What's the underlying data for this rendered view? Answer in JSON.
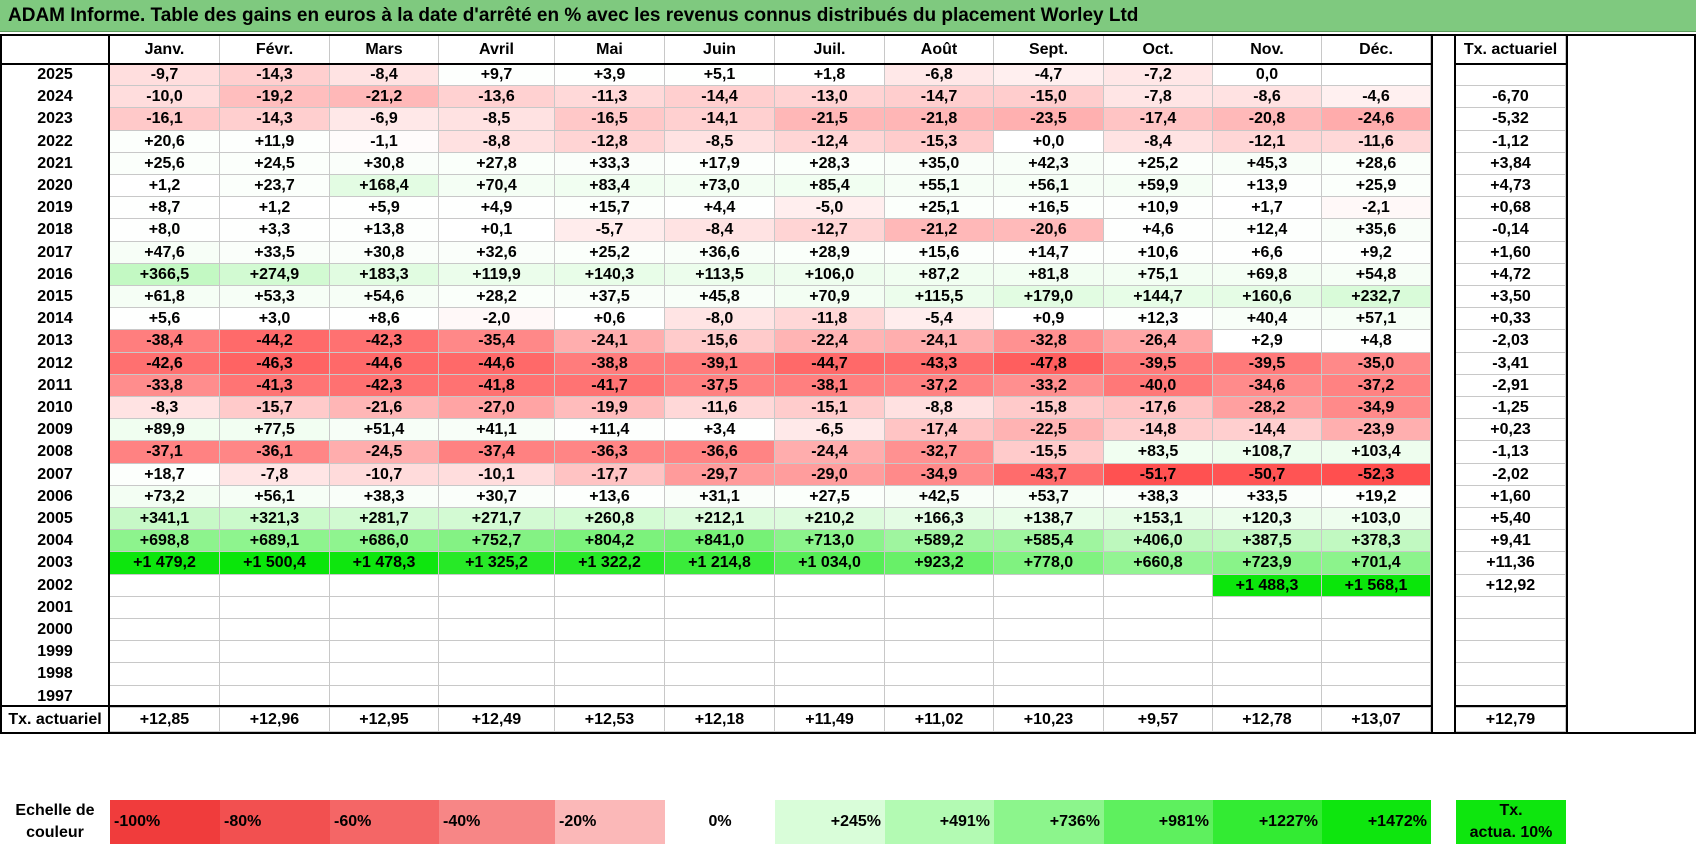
{
  "title": "ADAM Informe. Table des gains en euros à la date d'arrêté en % avec les revenus connus distribués du placement Worley Ltd",
  "months": [
    "Janv.",
    "Févr.",
    "Mars",
    "Avril",
    "Mai",
    "Juin",
    "Juil.",
    "Août",
    "Sept.",
    "Oct.",
    "Nov.",
    "Déc."
  ],
  "rate_header": "Tx. actuariel",
  "rows": [
    {
      "year": "2025",
      "values": [
        "-9,7",
        "-14,3",
        "-8,4",
        "+9,7",
        "+3,9",
        "+5,1",
        "+1,8",
        "-6,8",
        "-4,7",
        "-7,2",
        "0,0",
        ""
      ],
      "rate": ""
    },
    {
      "year": "2024",
      "values": [
        "-10,0",
        "-19,2",
        "-21,2",
        "-13,6",
        "-11,3",
        "-14,4",
        "-13,0",
        "-14,7",
        "-15,0",
        "-7,8",
        "-8,6",
        "-4,6"
      ],
      "rate": "-6,70"
    },
    {
      "year": "2023",
      "values": [
        "-16,1",
        "-14,3",
        "-6,9",
        "-8,5",
        "-16,5",
        "-14,1",
        "-21,5",
        "-21,8",
        "-23,5",
        "-17,4",
        "-20,8",
        "-24,6"
      ],
      "rate": "-5,32"
    },
    {
      "year": "2022",
      "values": [
        "+20,6",
        "+11,9",
        "-1,1",
        "-8,8",
        "-12,8",
        "-8,5",
        "-12,4",
        "-15,3",
        "+0,0",
        "-8,4",
        "-12,1",
        "-11,6"
      ],
      "rate": "-1,12"
    },
    {
      "year": "2021",
      "values": [
        "+25,6",
        "+24,5",
        "+30,8",
        "+27,8",
        "+33,3",
        "+17,9",
        "+28,3",
        "+35,0",
        "+42,3",
        "+25,2",
        "+45,3",
        "+28,6"
      ],
      "rate": "+3,84"
    },
    {
      "year": "2020",
      "values": [
        "+1,2",
        "+23,7",
        "+168,4",
        "+70,4",
        "+83,4",
        "+73,0",
        "+85,4",
        "+55,1",
        "+56,1",
        "+59,9",
        "+13,9",
        "+25,9"
      ],
      "rate": "+4,73"
    },
    {
      "year": "2019",
      "values": [
        "+8,7",
        "+1,2",
        "+5,9",
        "+4,9",
        "+15,7",
        "+4,4",
        "-5,0",
        "+25,1",
        "+16,5",
        "+10,9",
        "+1,7",
        "-2,1"
      ],
      "rate": "+0,68"
    },
    {
      "year": "2018",
      "values": [
        "+8,0",
        "+3,3",
        "+13,8",
        "+0,1",
        "-5,7",
        "-8,4",
        "-12,7",
        "-21,2",
        "-20,6",
        "+4,6",
        "+12,4",
        "+35,6"
      ],
      "rate": "-0,14"
    },
    {
      "year": "2017",
      "values": [
        "+47,6",
        "+33,5",
        "+30,8",
        "+32,6",
        "+25,2",
        "+36,6",
        "+28,9",
        "+15,6",
        "+14,7",
        "+10,6",
        "+6,6",
        "+9,2"
      ],
      "rate": "+1,60"
    },
    {
      "year": "2016",
      "values": [
        "+366,5",
        "+274,9",
        "+183,3",
        "+119,9",
        "+140,3",
        "+113,5",
        "+106,0",
        "+87,2",
        "+81,8",
        "+75,1",
        "+69,8",
        "+54,8"
      ],
      "rate": "+4,72"
    },
    {
      "year": "2015",
      "values": [
        "+61,8",
        "+53,3",
        "+54,6",
        "+28,2",
        "+37,5",
        "+45,8",
        "+70,9",
        "+115,5",
        "+179,0",
        "+144,7",
        "+160,6",
        "+232,7"
      ],
      "rate": "+3,50"
    },
    {
      "year": "2014",
      "values": [
        "+5,6",
        "+3,0",
        "+8,6",
        "-2,0",
        "+0,6",
        "-8,0",
        "-11,8",
        "-5,4",
        "+0,9",
        "+12,3",
        "+40,4",
        "+57,1"
      ],
      "rate": "+0,33"
    },
    {
      "year": "2013",
      "values": [
        "-38,4",
        "-44,2",
        "-42,3",
        "-35,4",
        "-24,1",
        "-15,6",
        "-22,4",
        "-24,1",
        "-32,8",
        "-26,4",
        "+2,9",
        "+4,8"
      ],
      "rate": "-2,03"
    },
    {
      "year": "2012",
      "values": [
        "-42,6",
        "-46,3",
        "-44,6",
        "-44,6",
        "-38,8",
        "-39,1",
        "-44,7",
        "-43,3",
        "-47,8",
        "-39,5",
        "-39,5",
        "-35,0"
      ],
      "rate": "-3,41"
    },
    {
      "year": "2011",
      "values": [
        "-33,8",
        "-41,3",
        "-42,3",
        "-41,8",
        "-41,7",
        "-37,5",
        "-38,1",
        "-37,2",
        "-33,2",
        "-40,0",
        "-34,6",
        "-37,2"
      ],
      "rate": "-2,91"
    },
    {
      "year": "2010",
      "values": [
        "-8,3",
        "-15,7",
        "-21,6",
        "-27,0",
        "-19,9",
        "-11,6",
        "-15,1",
        "-8,8",
        "-15,8",
        "-17,6",
        "-28,2",
        "-34,9"
      ],
      "rate": "-1,25"
    },
    {
      "year": "2009",
      "values": [
        "+89,9",
        "+77,5",
        "+51,4",
        "+41,1",
        "+11,4",
        "+3,4",
        "-6,5",
        "-17,4",
        "-22,5",
        "-14,8",
        "-14,4",
        "-23,9"
      ],
      "rate": "+0,23"
    },
    {
      "year": "2008",
      "values": [
        "-37,1",
        "-36,1",
        "-24,5",
        "-37,4",
        "-36,3",
        "-36,6",
        "-24,4",
        "-32,7",
        "-15,5",
        "+83,5",
        "+108,7",
        "+103,4"
      ],
      "rate": "-1,13"
    },
    {
      "year": "2007",
      "values": [
        "+18,7",
        "-7,8",
        "-10,7",
        "-10,1",
        "-17,7",
        "-29,7",
        "-29,0",
        "-34,9",
        "-43,7",
        "-51,7",
        "-50,7",
        "-52,3"
      ],
      "rate": "-2,02"
    },
    {
      "year": "2006",
      "values": [
        "+73,2",
        "+56,1",
        "+38,3",
        "+30,7",
        "+13,6",
        "+31,1",
        "+27,5",
        "+42,5",
        "+53,7",
        "+38,3",
        "+33,5",
        "+19,2"
      ],
      "rate": "+1,60"
    },
    {
      "year": "2005",
      "values": [
        "+341,1",
        "+321,3",
        "+281,7",
        "+271,7",
        "+260,8",
        "+212,1",
        "+210,2",
        "+166,3",
        "+138,7",
        "+153,1",
        "+120,3",
        "+103,0"
      ],
      "rate": "+5,40"
    },
    {
      "year": "2004",
      "values": [
        "+698,8",
        "+689,1",
        "+686,0",
        "+752,7",
        "+804,2",
        "+841,0",
        "+713,0",
        "+589,2",
        "+585,4",
        "+406,0",
        "+387,5",
        "+378,3"
      ],
      "rate": "+9,41"
    },
    {
      "year": "2003",
      "values": [
        "+1 479,2",
        "+1 500,4",
        "+1 478,3",
        "+1 325,2",
        "+1 322,2",
        "+1 214,8",
        "+1 034,0",
        "+923,2",
        "+778,0",
        "+660,8",
        "+723,9",
        "+701,4"
      ],
      "rate": "+11,36"
    },
    {
      "year": "2002",
      "values": [
        "",
        "",
        "",
        "",
        "",
        "",
        "",
        "",
        "",
        "",
        "+1 488,3",
        "+1 568,1"
      ],
      "rate": "+12,92"
    },
    {
      "year": "2001",
      "values": [
        "",
        "",
        "",
        "",
        "",
        "",
        "",
        "",
        "",
        "",
        "",
        ""
      ],
      "rate": ""
    },
    {
      "year": "2000",
      "values": [
        "",
        "",
        "",
        "",
        "",
        "",
        "",
        "",
        "",
        "",
        "",
        ""
      ],
      "rate": ""
    },
    {
      "year": "1999",
      "values": [
        "",
        "",
        "",
        "",
        "",
        "",
        "",
        "",
        "",
        "",
        "",
        ""
      ],
      "rate": ""
    },
    {
      "year": "1998",
      "values": [
        "",
        "",
        "",
        "",
        "",
        "",
        "",
        "",
        "",
        "",
        "",
        ""
      ],
      "rate": ""
    },
    {
      "year": "1997",
      "values": [
        "",
        "",
        "",
        "",
        "",
        "",
        "",
        "",
        "",
        "",
        "",
        ""
      ],
      "rate": ""
    }
  ],
  "footer": {
    "label": "Tx. actuariel",
    "values": [
      "+12,85",
      "+12,96",
      "+12,95",
      "+12,49",
      "+12,53",
      "+12,18",
      "+11,49",
      "+11,02",
      "+10,23",
      "+9,57",
      "+12,78",
      "+13,07"
    ],
    "rate": "+12,79"
  },
  "scale": {
    "label_line1": "Echelle de",
    "label_line2": "couleur",
    "items": [
      {
        "label": "-100%",
        "color": "#f03c3c",
        "align": "left"
      },
      {
        "label": "-80%",
        "color": "#f25050",
        "align": "left"
      },
      {
        "label": "-60%",
        "color": "#f46666",
        "align": "left"
      },
      {
        "label": "-40%",
        "color": "#f78686",
        "align": "left"
      },
      {
        "label": "-20%",
        "color": "#fbb8b8",
        "align": "left"
      },
      {
        "label": "0%",
        "color": "#ffffff",
        "align": "center"
      },
      {
        "label": "+245%",
        "color": "#d9fdd9",
        "align": "right"
      },
      {
        "label": "+491%",
        "color": "#b3fab3",
        "align": "right"
      },
      {
        "label": "+736%",
        "color": "#8cf58c",
        "align": "right"
      },
      {
        "label": "+981%",
        "color": "#5ef05e",
        "align": "right"
      },
      {
        "label": "+1227%",
        "color": "#33eb33",
        "align": "right"
      },
      {
        "label": "+1472%",
        "color": "#0ee60e",
        "align": "right"
      }
    ],
    "rate_line1": "Tx.",
    "rate_line2": "actua. 10%",
    "rate_color": "#0ee60e"
  }
}
